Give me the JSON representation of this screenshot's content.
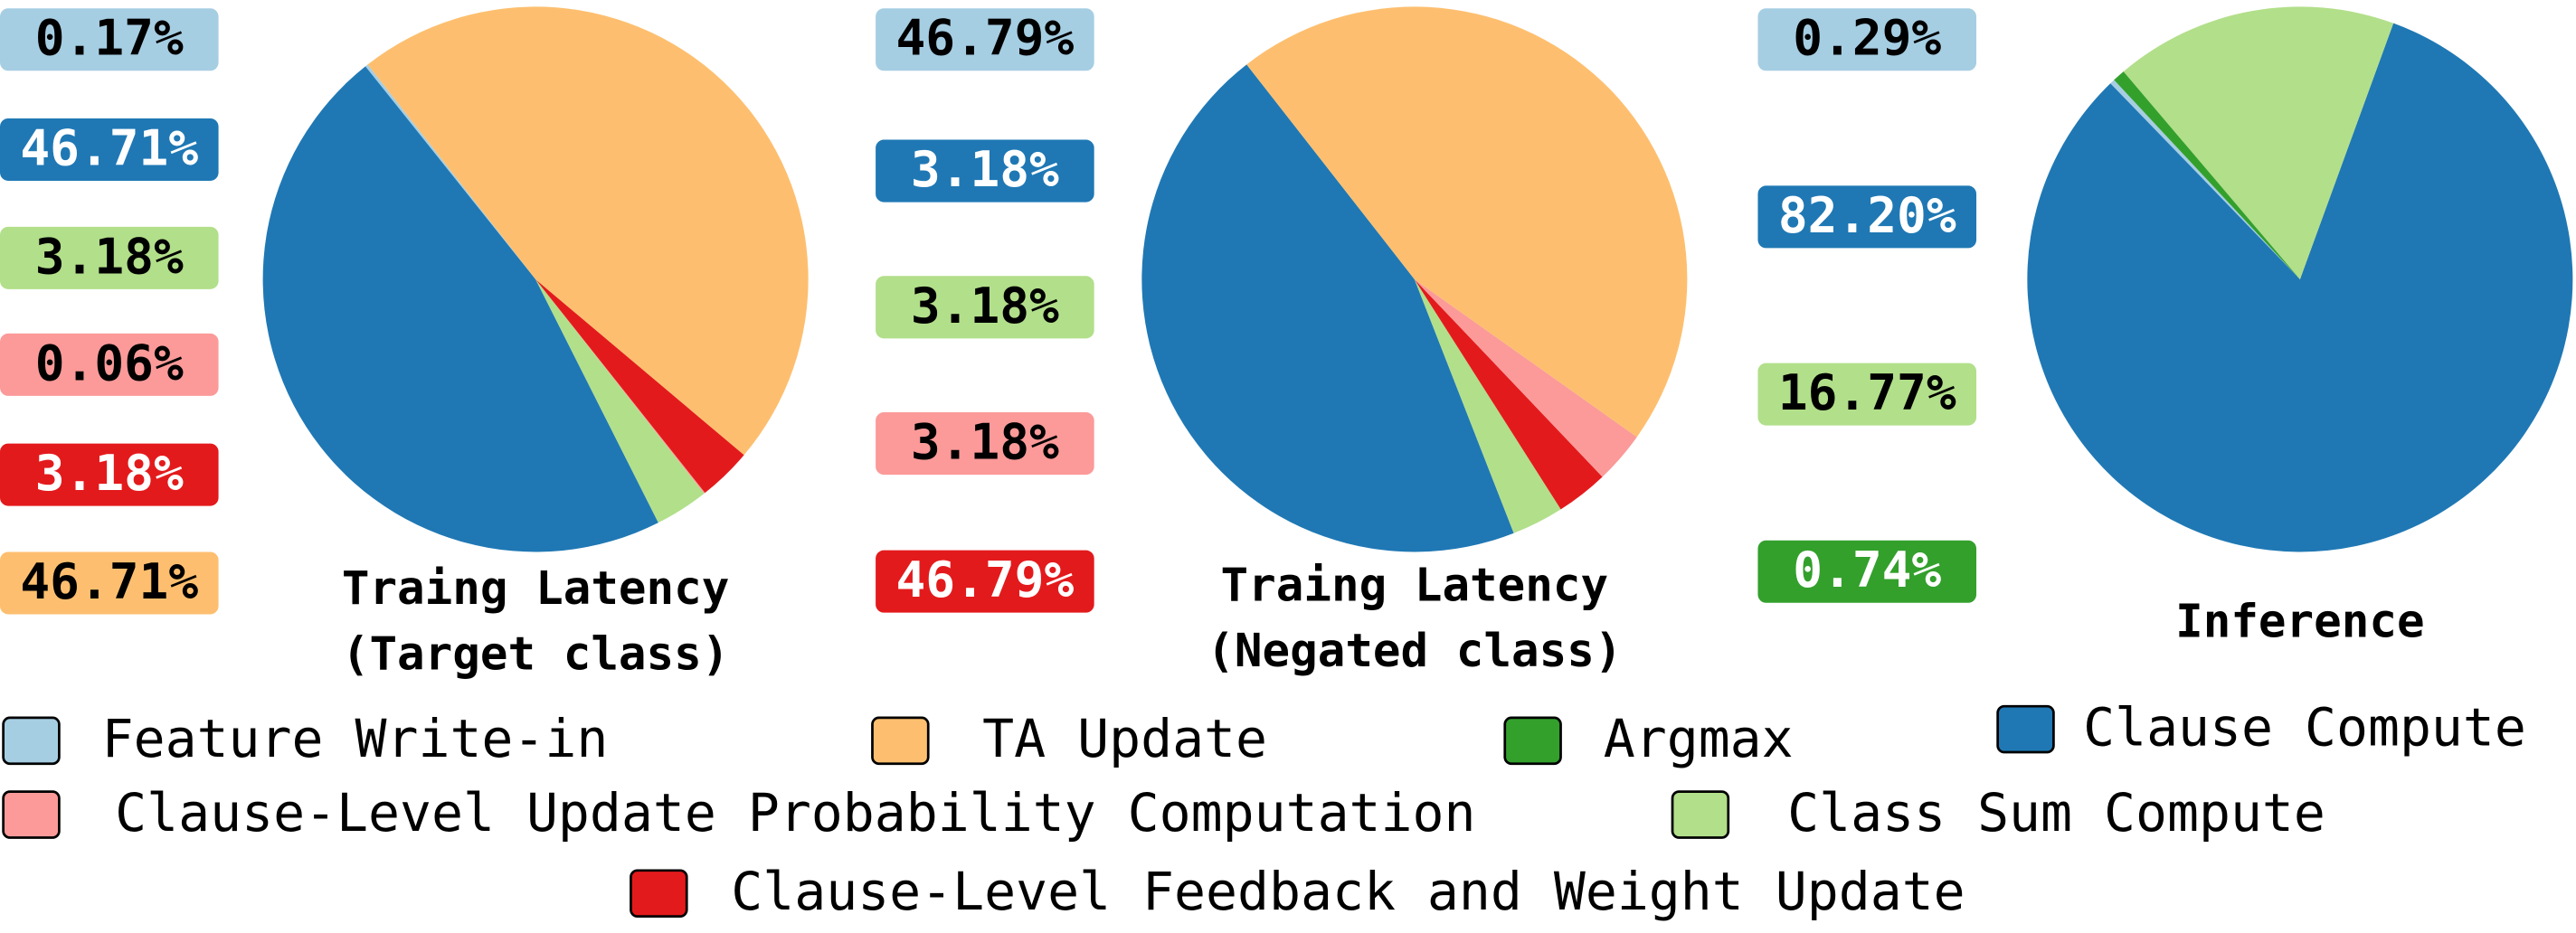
{
  "chart_data": [
    {
      "type": "pie",
      "title": [
        "Traing Latency",
        "(Target class)"
      ],
      "values": [
        0.17,
        46.71,
        3.18,
        0.06,
        3.18,
        46.71
      ],
      "value_labels": [
        "0.17%",
        "46.71%",
        "3.18%",
        "0.06%",
        "3.18%",
        "46.71%"
      ],
      "colors": [
        "#a6cee3",
        "#1f78b4",
        "#b2df8a",
        "#fb9a99",
        "#e31a1c",
        "#fdbf6f"
      ],
      "label_colors": [
        "#a6cee3",
        "#1f78b4",
        "#b2df8a",
        "#fb9a99",
        "#e31a1c",
        "#fdbf6f"
      ]
    },
    {
      "type": "pie",
      "title": [
        "Traing Latency",
        "(Negated class)"
      ],
      "values": [
        46.79,
        3.18,
        3.18,
        3.18,
        46.79
      ],
      "value_labels": [
        "46.79%",
        "3.18%",
        "3.18%",
        "3.18%",
        "46.79%"
      ],
      "colors": [
        "#1f78b4",
        "#b2df8a",
        "#e31a1c",
        "#fb9a99",
        "#fdbf6f"
      ],
      "label_colors": [
        "#a6cee3",
        "#1f78b4",
        "#b2df8a",
        "#fb9a99",
        "#e31a1c"
      ]
    },
    {
      "type": "pie",
      "title": [
        "Inference"
      ],
      "values": [
        0.29,
        82.2,
        16.77,
        0.74
      ],
      "value_labels": [
        "0.29%",
        "82.20%",
        "16.77%",
        "0.74%"
      ],
      "colors": [
        "#a6cee3",
        "#1f78b4",
        "#b2df8a",
        "#33a02c"
      ],
      "label_colors": [
        "#a6cee3",
        "#1f78b4",
        "#b2df8a",
        "#33a02c"
      ]
    }
  ],
  "legend": [
    {
      "name": "Feature Write-in",
      "color": "#a6cee3"
    },
    {
      "name": "TA Update",
      "color": "#fdbf6f"
    },
    {
      "name": "Argmax",
      "color": "#33a02c"
    },
    {
      "name": "Clause Compute",
      "color": "#1f78b4"
    },
    {
      "name": "Clause-Level Update Probability Computation",
      "color": "#fb9a99"
    },
    {
      "name": "Class Sum Compute",
      "color": "#b2df8a"
    },
    {
      "name": "Clause-Level Feedback and Weight Update",
      "color": "#e31a1c"
    }
  ]
}
